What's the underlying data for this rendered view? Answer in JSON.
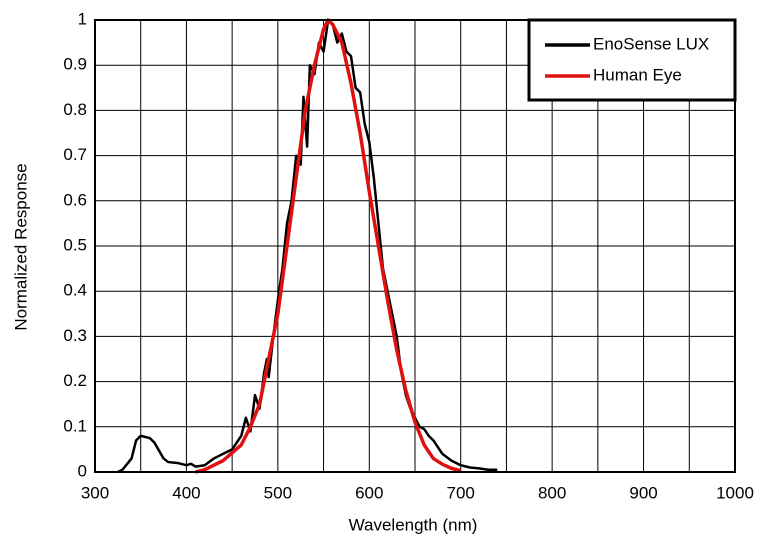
{
  "chart_data": {
    "type": "line",
    "xlabel": "Wavelength (nm)",
    "ylabel": "Normalized Response",
    "xlim": [
      300,
      1000
    ],
    "xticks": [
      300,
      400,
      500,
      600,
      700,
      800,
      900,
      1000
    ],
    "xminor_grid": [
      350,
      450,
      550,
      650,
      750,
      850,
      950
    ],
    "ylim": [
      0,
      1
    ],
    "yticks": [
      0,
      0.1,
      0.2,
      0.3,
      0.4,
      0.5,
      0.6,
      0.7,
      0.8,
      0.9,
      1
    ],
    "grid": true,
    "legend": "upper right",
    "series": [
      {
        "name": "EnoSense LUX",
        "color": "#000000",
        "x": [
          325,
          330,
          340,
          345,
          350,
          360,
          365,
          375,
          380,
          390,
          400,
          405,
          410,
          420,
          430,
          440,
          450,
          455,
          460,
          465,
          470,
          475,
          480,
          485,
          488,
          490,
          495,
          500,
          505,
          510,
          515,
          520,
          525,
          528,
          532,
          535,
          540,
          545,
          550,
          555,
          560,
          565,
          570,
          575,
          580,
          585,
          590,
          595,
          600,
          605,
          610,
          615,
          620,
          625,
          630,
          635,
          640,
          645,
          650,
          655,
          660,
          665,
          670,
          680,
          690,
          700,
          710,
          720,
          730,
          740
        ],
        "values": [
          0,
          0.005,
          0.03,
          0.07,
          0.08,
          0.075,
          0.065,
          0.03,
          0.022,
          0.02,
          0.015,
          0.018,
          0.012,
          0.015,
          0.03,
          0.04,
          0.05,
          0.065,
          0.08,
          0.12,
          0.09,
          0.17,
          0.14,
          0.22,
          0.25,
          0.21,
          0.3,
          0.38,
          0.45,
          0.55,
          0.6,
          0.7,
          0.68,
          0.83,
          0.72,
          0.9,
          0.88,
          0.95,
          0.93,
          1.0,
          0.99,
          0.95,
          0.97,
          0.93,
          0.92,
          0.85,
          0.84,
          0.77,
          0.73,
          0.65,
          0.55,
          0.45,
          0.4,
          0.35,
          0.3,
          0.22,
          0.17,
          0.14,
          0.12,
          0.1,
          0.095,
          0.08,
          0.07,
          0.04,
          0.025,
          0.015,
          0.01,
          0.008,
          0.005,
          0.005
        ]
      },
      {
        "name": "Human Eye",
        "color": "#e01010",
        "x": [
          410,
          420,
          440,
          460,
          470,
          480,
          490,
          500,
          510,
          520,
          530,
          540,
          550,
          555,
          560,
          570,
          580,
          590,
          600,
          610,
          620,
          630,
          640,
          650,
          660,
          670,
          680,
          690,
          700
        ],
        "values": [
          0,
          0.005,
          0.025,
          0.06,
          0.1,
          0.15,
          0.25,
          0.35,
          0.5,
          0.65,
          0.8,
          0.9,
          0.98,
          1,
          0.99,
          0.95,
          0.86,
          0.75,
          0.62,
          0.5,
          0.38,
          0.27,
          0.18,
          0.11,
          0.06,
          0.03,
          0.017,
          0.008,
          0.003
        ]
      }
    ]
  }
}
